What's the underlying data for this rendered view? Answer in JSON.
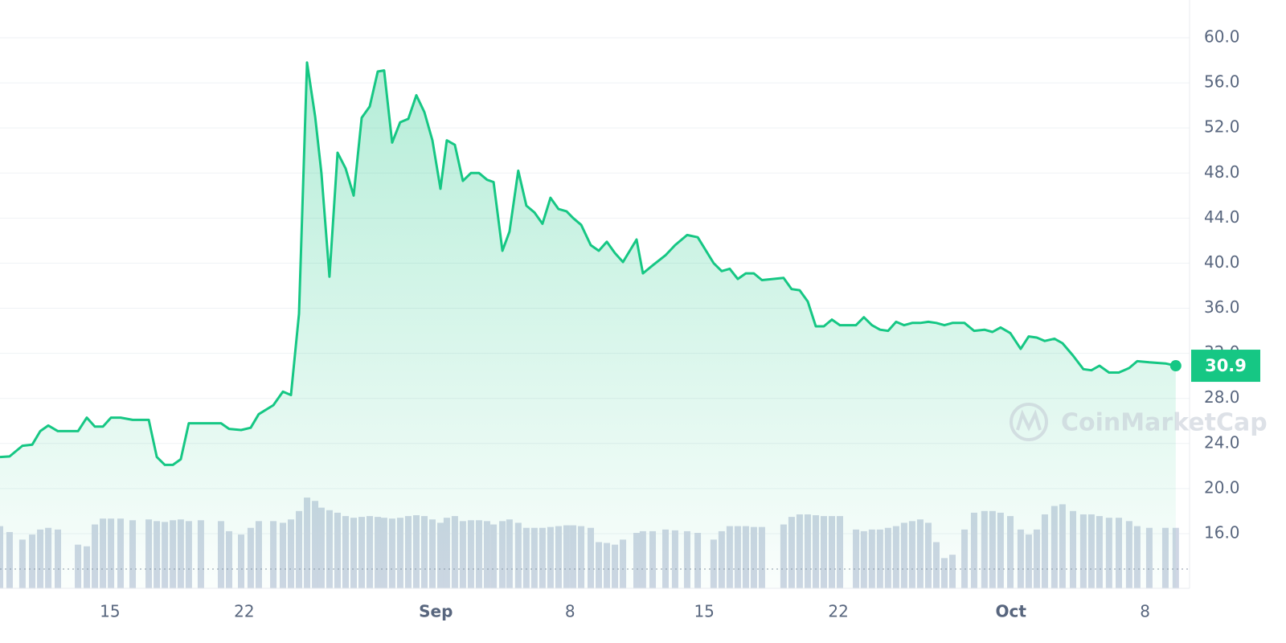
{
  "chart_data": {
    "type": "line",
    "watermark": "CoinMarketCap",
    "x": [
      9.26,
      9.76,
      10.43,
      10.94,
      11.36,
      11.78,
      12.28,
      13.33,
      13.79,
      14.21,
      14.63,
      15.05,
      15.55,
      16.18,
      17.02,
      17.44,
      17.86,
      18.28,
      18.69,
      19.11,
      19.74,
      20.79,
      21.21,
      21.84,
      22.34,
      22.76,
      23.52,
      24.02,
      24.44,
      24.86,
      25.28,
      25.7,
      26.03,
      26.45,
      26.87,
      27.29,
      27.71,
      28.13,
      28.55,
      28.97,
      29.3,
      29.72,
      30.14,
      30.56,
      30.98,
      31.4,
      31.82,
      32.24,
      32.57,
      32.99,
      33.41,
      33.83,
      34.25,
      34.67,
      35.01,
      35.47,
      35.84,
      36.3,
      36.72,
      37.14,
      37.56,
      37.98,
      38.4,
      38.82,
      39.16,
      39.58,
      40.08,
      40.5,
      40.92,
      41.34,
      41.76,
      42.47,
      42.8,
      43.31,
      43.98,
      44.48,
      45.11,
      45.66,
      46.49,
      46.91,
      47.33,
      47.75,
      48.17,
      48.59,
      49.01,
      50.14,
      50.56,
      50.98,
      51.4,
      51.82,
      52.24,
      52.66,
      53.08,
      53.92,
      54.33,
      54.75,
      55.17,
      55.59,
      56.01,
      56.43,
      56.85,
      57.27,
      57.69,
      58.11,
      58.53,
      58.95,
      59.58,
      60.08,
      60.62,
      61.04,
      61.46,
      61.97,
      62.51,
      62.93,
      63.35,
      63.77,
      64.27,
      64.69,
      65.24,
      65.78,
      66.2,
      66.62,
      67.12,
      67.63,
      68.17,
      68.59,
      69.22,
      70.06,
      70.6
    ],
    "series": [
      {
        "color": "#16c784",
        "values": [
          22.8,
          22.85,
          23.8,
          23.9,
          25.1,
          25.6,
          25.1,
          25.1,
          26.3,
          25.5,
          25.5,
          26.3,
          26.3,
          26.1,
          26.1,
          22.8,
          22.1,
          22.1,
          22.6,
          25.8,
          25.8,
          25.8,
          25.3,
          25.2,
          25.4,
          26.6,
          27.4,
          28.6,
          28.3,
          35.5,
          57.8,
          53.0,
          48.0,
          38.8,
          49.8,
          48.4,
          46.0,
          52.9,
          53.9,
          57.0,
          57.1,
          50.7,
          52.5,
          52.8,
          54.9,
          53.4,
          50.9,
          46.6,
          50.9,
          50.5,
          47.3,
          48.0,
          48.0,
          47.4,
          47.2,
          41.1,
          42.8,
          48.2,
          45.1,
          44.5,
          43.5,
          45.8,
          44.8,
          44.6,
          44.0,
          43.4,
          41.6,
          41.1,
          41.9,
          40.9,
          40.1,
          42.1,
          39.1,
          39.8,
          40.7,
          41.6,
          42.5,
          42.3,
          40.0,
          39.3,
          39.5,
          38.6,
          39.1,
          39.1,
          38.5,
          38.7,
          37.7,
          37.6,
          36.6,
          34.4,
          34.4,
          35.0,
          34.5,
          34.5,
          35.2,
          34.5,
          34.1,
          34.0,
          34.8,
          34.5,
          34.7,
          34.7,
          34.8,
          34.7,
          34.5,
          34.7,
          34.7,
          34.0,
          34.1,
          33.9,
          34.3,
          33.8,
          32.4,
          33.5,
          33.4,
          33.1,
          33.3,
          32.9,
          31.8,
          30.6,
          30.5,
          30.9,
          30.3,
          30.3,
          30.7,
          31.3,
          31.2,
          31.1,
          30.9
        ]
      },
      {
        "color": "#cfd6e4",
        "axis": "y2",
        "values": [
          74,
          67,
          58,
          64,
          70,
          72,
          70,
          52,
          50,
          76,
          83,
          83,
          83,
          81,
          82,
          80,
          79,
          81,
          82,
          80,
          81,
          80,
          68,
          64,
          72,
          80,
          80,
          78,
          82,
          92,
          108,
          104,
          96,
          93,
          90,
          86,
          84,
          85,
          86,
          85,
          84,
          83,
          84,
          86,
          87,
          86,
          82,
          78,
          84,
          86,
          80,
          81,
          81,
          80,
          76,
          80,
          82,
          78,
          72,
          72,
          72,
          73,
          74,
          75,
          75,
          74,
          72,
          55,
          54,
          52,
          58,
          66,
          68,
          68,
          70,
          69,
          68,
          66,
          58,
          68,
          74,
          74,
          74,
          73,
          73,
          76,
          85,
          88,
          88,
          87,
          86,
          86,
          86,
          70,
          68,
          70,
          70,
          72,
          74,
          78,
          80,
          82,
          78,
          55,
          36,
          40,
          70,
          90,
          92,
          92,
          90,
          86,
          70,
          64,
          70,
          88,
          98,
          100,
          92,
          88,
          88,
          86,
          84,
          84,
          80,
          74,
          72,
          72,
          72
        ]
      }
    ],
    "xlim": [
      9.26,
      71.32
    ],
    "xticks": [
      {
        "value": 15,
        "label": "15"
      },
      {
        "value": 22,
        "label": "22"
      },
      {
        "value": 32,
        "label": "Sep"
      },
      {
        "value": 39,
        "label": "8"
      },
      {
        "value": 46,
        "label": "15"
      },
      {
        "value": 53,
        "label": "22"
      },
      {
        "value": 62,
        "label": "Oct"
      },
      {
        "value": 69,
        "label": "8"
      }
    ],
    "ylim": [
      11.15,
      63.35
    ],
    "yticks": [
      {
        "value": 16,
        "label": "16.0"
      },
      {
        "value": 20,
        "label": "20.0"
      },
      {
        "value": 24,
        "label": "24.0"
      },
      {
        "value": 28,
        "label": "28.0"
      },
      {
        "value": 32,
        "label": "32.0"
      },
      {
        "value": 36,
        "label": "36.0"
      },
      {
        "value": 40,
        "label": "40.0"
      },
      {
        "value": 44,
        "label": "44.0"
      },
      {
        "value": 48,
        "label": "48.0"
      },
      {
        "value": 52,
        "label": "52.0"
      },
      {
        "value": 56,
        "label": "56.0"
      },
      {
        "value": 60,
        "label": "60.0"
      }
    ],
    "y2lim": [
      0,
      700
    ],
    "grid": true
  }
}
